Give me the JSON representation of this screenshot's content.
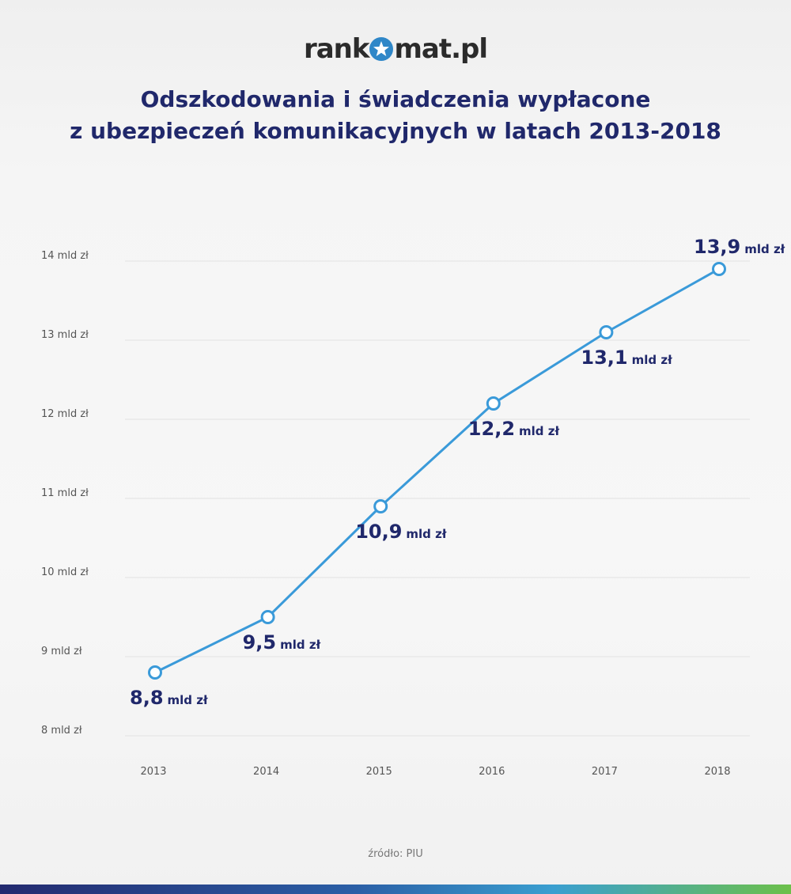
{
  "logo": {
    "part1": "rank",
    "part2": "mat.pl",
    "icon": "star-icon"
  },
  "title_line1": "Odszkodowania i świadczenia wypłacone",
  "title_line2": "z ubezpieczeń komunikacyjnych w latach 2013-2018",
  "source": "źródło: PIU",
  "colors": {
    "line": "#3a9ad9",
    "label": "#20286b",
    "grid": "#e2e2e2",
    "tick": "#555555"
  },
  "chart_data": {
    "type": "line",
    "categories": [
      "2013",
      "2014",
      "2015",
      "2016",
      "2017",
      "2018"
    ],
    "values": [
      8.8,
      9.5,
      10.9,
      12.2,
      13.1,
      13.9
    ],
    "point_labels": [
      {
        "num": "8,8",
        "unit": "mld zł",
        "pos": "below"
      },
      {
        "num": "9,5",
        "unit": "mld zł",
        "pos": "below"
      },
      {
        "num": "10,9",
        "unit": "mld zł",
        "pos": "below"
      },
      {
        "num": "12,2",
        "unit": "mld zł",
        "pos": "below"
      },
      {
        "num": "13,1",
        "unit": "mld zł",
        "pos": "below"
      },
      {
        "num": "13,9",
        "unit": "mld zł",
        "pos": "above"
      }
    ],
    "y_ticks": [
      8,
      9,
      10,
      11,
      12,
      13,
      14
    ],
    "y_tick_labels": [
      "8 mld zł",
      "9 mld zł",
      "10 mld zł",
      "11 mld zł",
      "12 mld zł",
      "13 mld zł",
      "14 mld zł"
    ],
    "ylim": [
      8,
      14
    ],
    "grid": true,
    "legend": "none"
  }
}
